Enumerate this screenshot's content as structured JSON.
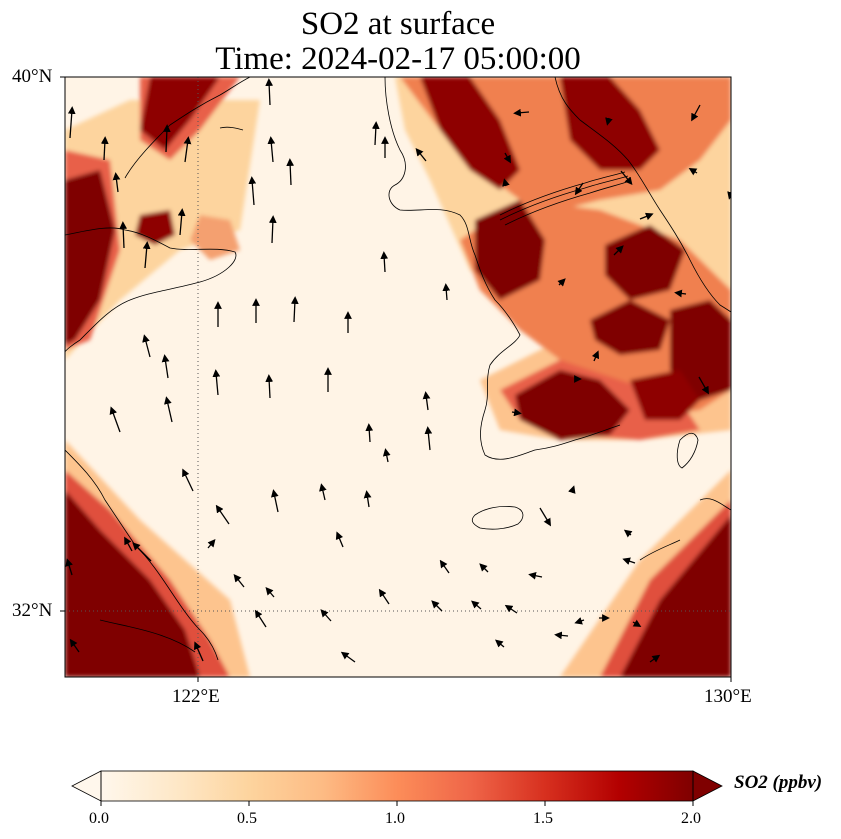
{
  "title": {
    "line1": "SO2 at surface",
    "line2": "Time: 2024-02-17 05:00:00"
  },
  "map": {
    "lon_range": [
      119.6,
      130
    ],
    "lat_range": [
      30.9,
      40
    ],
    "lat_ticks": [
      {
        "value": 40,
        "label": "40°N"
      },
      {
        "value": 32,
        "label": "32°N"
      }
    ],
    "lon_ticks": [
      {
        "value": 122,
        "label": "122°E"
      },
      {
        "value": 130,
        "label": "130°E"
      }
    ],
    "gridlines": [
      {
        "axis": "lon",
        "value": 122,
        "style": "dotted"
      },
      {
        "axis": "lat",
        "value": 32,
        "style": "dotted"
      }
    ],
    "field": "SO2 concentration at surface",
    "overlay": "wind vectors (arrows)"
  },
  "colorbar": {
    "label": "SO2 (ppbv)",
    "range": [
      0.0,
      2.0
    ],
    "extend": "both",
    "colormap": [
      "#fff7ec",
      "#fee8c8",
      "#fdd49e",
      "#fdbb84",
      "#fc8d59",
      "#ef6548",
      "#d7301f",
      "#b30000",
      "#7f0000"
    ],
    "ticks": [
      {
        "value": 0.0,
        "label": "0.0"
      },
      {
        "value": 0.5,
        "label": "0.5"
      },
      {
        "value": 1.0,
        "label": "1.0"
      },
      {
        "value": 1.5,
        "label": "1.5"
      },
      {
        "value": 2.0,
        "label": "2.0"
      }
    ]
  }
}
